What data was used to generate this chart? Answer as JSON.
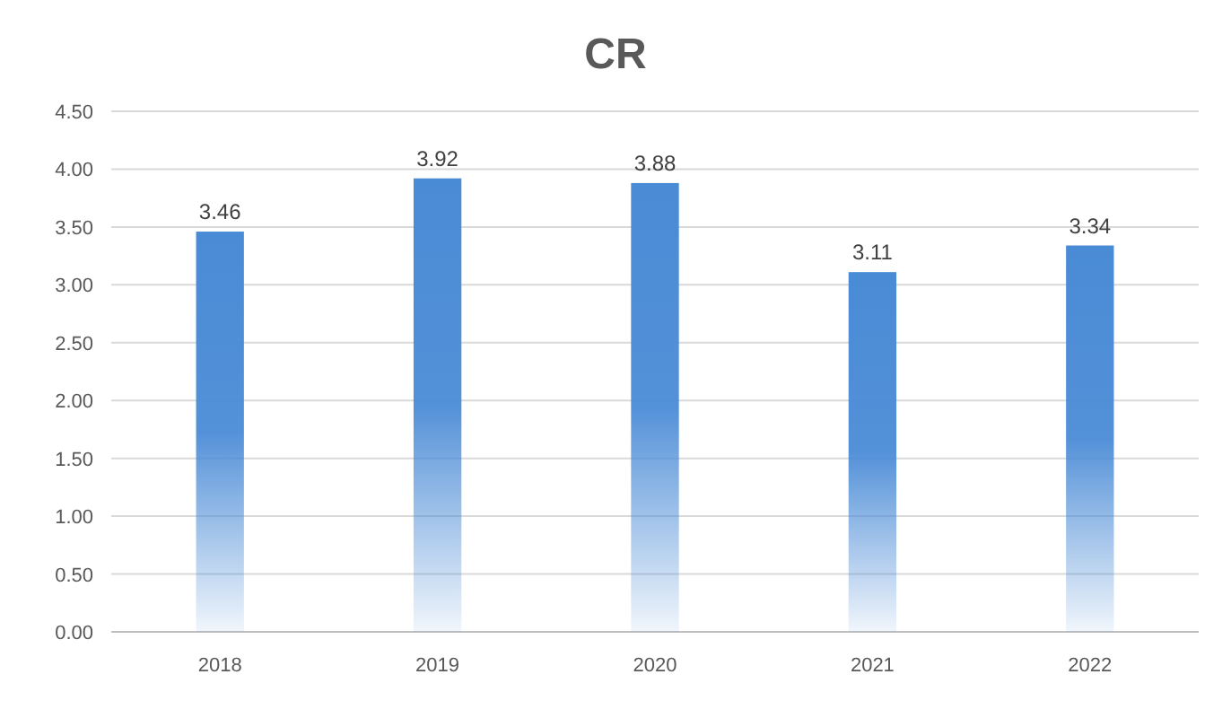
{
  "chart_data": {
    "type": "bar",
    "title": "CR",
    "categories": [
      "2018",
      "2019",
      "2020",
      "2021",
      "2022"
    ],
    "values": [
      3.46,
      3.92,
      3.88,
      3.11,
      3.34
    ],
    "color": "#4a8bd6",
    "ylim": [
      0,
      4.5
    ],
    "yticks": [
      {
        "value": 0,
        "label": "0.00"
      },
      {
        "value": 0.5,
        "label": "0.50"
      },
      {
        "value": 1,
        "label": "1.00"
      },
      {
        "value": 1.5,
        "label": "1.50"
      },
      {
        "value": 2,
        "label": "2.00"
      },
      {
        "value": 2.5,
        "label": "2.50"
      },
      {
        "value": 3,
        "label": "3.00"
      },
      {
        "value": 3.5,
        "label": "3.50"
      },
      {
        "value": 4,
        "label": "4.00"
      },
      {
        "value": 4.5,
        "label": "4.50"
      }
    ],
    "grid": "y",
    "data_labels": true
  }
}
